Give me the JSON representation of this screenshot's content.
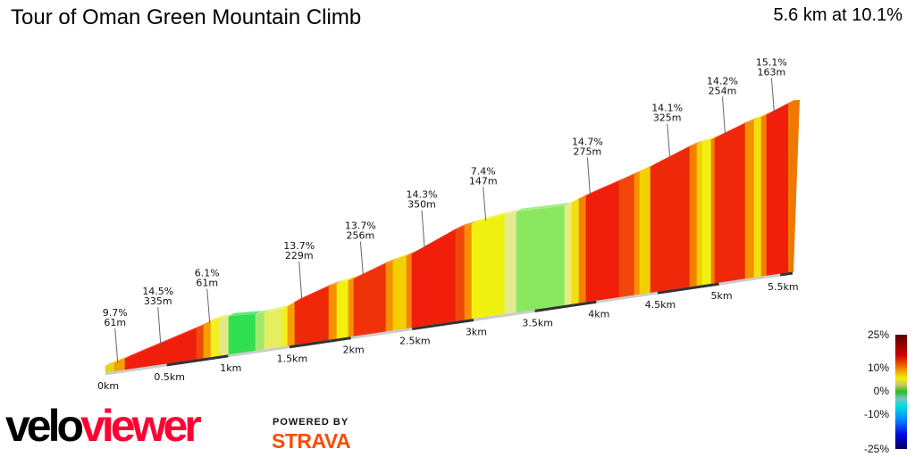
{
  "header": {
    "title": "Tour of Oman Green Mountain Climb",
    "summary": "5.6 km at 10.1%"
  },
  "chart_data": {
    "type": "area",
    "title": "Tour of Oman Green Mountain Climb",
    "distance_km": 5.6,
    "avg_gradient_pct": 10.1,
    "x_ticks": [
      "0km",
      "0.5km",
      "1km",
      "1.5km",
      "2km",
      "2.5km",
      "3km",
      "3.5km",
      "4km",
      "4.5km",
      "5km",
      "5.5km"
    ],
    "annotations": [
      {
        "km": 0.1,
        "gradient": "9.7%",
        "length": "61m"
      },
      {
        "km": 0.45,
        "gradient": "14.5%",
        "length": "335m"
      },
      {
        "km": 0.85,
        "gradient": "6.1%",
        "length": "61m"
      },
      {
        "km": 1.6,
        "gradient": "13.7%",
        "length": "229m"
      },
      {
        "km": 2.1,
        "gradient": "13.7%",
        "length": "256m"
      },
      {
        "km": 2.6,
        "gradient": "14.3%",
        "length": "350m"
      },
      {
        "km": 3.1,
        "gradient": "7.4%",
        "length": "147m"
      },
      {
        "km": 3.95,
        "gradient": "14.7%",
        "length": "275m"
      },
      {
        "km": 4.6,
        "gradient": "14.1%",
        "length": "325m"
      },
      {
        "km": 5.05,
        "gradient": "14.2%",
        "length": "254m"
      },
      {
        "km": 5.45,
        "gradient": "15.1%",
        "length": "163m"
      }
    ],
    "legend": {
      "labels": [
        "25%",
        "10%",
        "0%",
        "-10%",
        "-25%"
      ],
      "colors": [
        "#5a0000",
        "#e00000",
        "#f07000",
        "#f0f000",
        "#c8c864",
        "#20c020",
        "#80c0c0",
        "#00e0e0",
        "#0080ff",
        "#0000e0",
        "#000060"
      ]
    }
  },
  "brand": {
    "logo_a": "velo",
    "logo_b": "viewer",
    "powered": "POWERED BY",
    "strava": "STRAVA"
  }
}
